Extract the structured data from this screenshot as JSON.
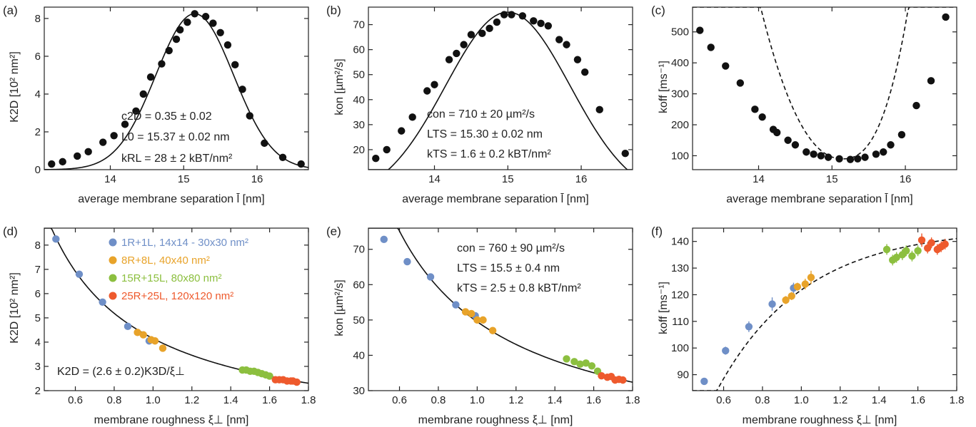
{
  "colors": {
    "axis": "#222222",
    "point_black": "#111111",
    "series_1R": "#6f8fc7",
    "series_8R": "#e8a32a",
    "series_15R": "#8cbf3f",
    "series_25R": "#ee5a2d"
  },
  "chart_data": [
    {
      "panel": "(a)",
      "type": "scatter",
      "xlabel": "average membrane separation l̄ [nm]",
      "ylabel": "K2D [10² nm²]",
      "xlim": [
        13.1,
        16.7
      ],
      "ylim": [
        0,
        8.6
      ],
      "xticks": [
        14,
        15,
        16
      ],
      "yticks": [
        0,
        2,
        4,
        6,
        8
      ],
      "fit": "solid",
      "points": [
        [
          13.2,
          0.3
        ],
        [
          13.35,
          0.42
        ],
        [
          13.55,
          0.72
        ],
        [
          13.7,
          0.95
        ],
        [
          13.9,
          1.45
        ],
        [
          14.05,
          1.8
        ],
        [
          14.2,
          2.4
        ],
        [
          14.35,
          3.1
        ],
        [
          14.45,
          4.0
        ],
        [
          14.55,
          4.9
        ],
        [
          14.7,
          5.6
        ],
        [
          14.8,
          6.3
        ],
        [
          14.9,
          6.9
        ],
        [
          14.95,
          7.4
        ],
        [
          15.05,
          7.8
        ],
        [
          15.15,
          8.25
        ],
        [
          15.3,
          8.1
        ],
        [
          15.4,
          7.75
        ],
        [
          15.5,
          7.25
        ],
        [
          15.6,
          6.6
        ],
        [
          15.7,
          5.55
        ],
        [
          15.8,
          4.25
        ],
        [
          15.9,
          2.85
        ],
        [
          16.1,
          1.4
        ],
        [
          16.35,
          0.65
        ],
        [
          16.6,
          0.3
        ]
      ],
      "annotations": [
        {
          "text": "c2D = 0.35 ± 0.02"
        },
        {
          "text": "L0 = 15.37 ± 0.02 nm"
        },
        {
          "text": "kRL = 28 ± 2 kBT/nm²"
        }
      ]
    },
    {
      "panel": "(b)",
      "type": "scatter",
      "xlabel": "average membrane separation l̄ [nm]",
      "ylabel": "kon [µm²/s]",
      "xlim": [
        13.1,
        16.7
      ],
      "ylim": [
        12,
        77
      ],
      "xticks": [
        14,
        15,
        16
      ],
      "yticks": [
        20,
        30,
        40,
        50,
        60,
        70
      ],
      "fit": "solid",
      "points": [
        [
          13.2,
          16.5
        ],
        [
          13.35,
          20
        ],
        [
          13.55,
          27.5
        ],
        [
          13.7,
          33
        ],
        [
          13.9,
          43.5
        ],
        [
          14.0,
          46
        ],
        [
          14.2,
          56
        ],
        [
          14.3,
          58.5
        ],
        [
          14.4,
          62
        ],
        [
          14.5,
          66
        ],
        [
          14.65,
          66.5
        ],
        [
          14.75,
          68.5
        ],
        [
          14.85,
          71
        ],
        [
          14.95,
          74
        ],
        [
          15.05,
          74
        ],
        [
          15.2,
          73.5
        ],
        [
          15.35,
          71.5
        ],
        [
          15.45,
          70.5
        ],
        [
          15.55,
          69.5
        ],
        [
          15.7,
          64
        ],
        [
          15.8,
          62
        ],
        [
          15.95,
          56
        ],
        [
          16.05,
          51
        ],
        [
          16.25,
          36
        ],
        [
          16.6,
          18.5
        ]
      ],
      "annotations": [
        {
          "text": "con = 710 ± 20 µm²/s"
        },
        {
          "text": "LTS = 15.30 ± 0.02 nm"
        },
        {
          "text": "kTS = 1.6 ± 0.2 kBT/nm²"
        }
      ]
    },
    {
      "panel": "(c)",
      "type": "scatter",
      "xlabel": "average membrane separation l̄ [nm]",
      "ylabel": "koff [ms⁻¹]",
      "xlim": [
        13.1,
        16.7
      ],
      "ylim": [
        55,
        580
      ],
      "xticks": [
        14,
        15,
        16
      ],
      "yticks": [
        100,
        200,
        300,
        400,
        500
      ],
      "fit": "dashed",
      "points": [
        [
          13.2,
          505
        ],
        [
          13.35,
          450
        ],
        [
          13.55,
          390
        ],
        [
          13.75,
          335
        ],
        [
          13.95,
          250
        ],
        [
          14.05,
          225
        ],
        [
          14.2,
          185
        ],
        [
          14.25,
          175
        ],
        [
          14.4,
          150
        ],
        [
          14.5,
          135
        ],
        [
          14.65,
          112
        ],
        [
          14.75,
          105
        ],
        [
          14.85,
          100
        ],
        [
          14.95,
          95
        ],
        [
          15.1,
          90
        ],
        [
          15.25,
          88
        ],
        [
          15.35,
          90
        ],
        [
          15.45,
          95
        ],
        [
          15.6,
          105
        ],
        [
          15.7,
          112
        ],
        [
          15.8,
          135
        ],
        [
          15.95,
          168
        ],
        [
          16.15,
          262
        ],
        [
          16.35,
          342
        ],
        [
          16.55,
          548
        ]
      ],
      "annotations": []
    },
    {
      "panel": "(d)",
      "type": "scatter",
      "xlabel": "membrane roughness ξ⊥ [nm]",
      "ylabel": "K2D [10² nm²]",
      "xlim": [
        0.44,
        1.8
      ],
      "ylim": [
        2.0,
        8.7
      ],
      "xticks": [
        0.6,
        0.8,
        1.0,
        1.2,
        1.4,
        1.6,
        1.8
      ],
      "yticks": [
        2,
        3,
        4,
        5,
        6,
        7,
        8
      ],
      "fit": "solid",
      "legend_position": "top-right",
      "legend": [
        {
          "label": "1R+1L, 14x14 - 30x30 nm²",
          "color_key": "series_1R"
        },
        {
          "label": "8R+8L, 40x40 nm²",
          "color_key": "series_8R"
        },
        {
          "label": "15R+15L, 80x80 nm²",
          "color_key": "series_15R"
        },
        {
          "label": "25R+25L, 120x120 nm²",
          "color_key": "series_25R"
        }
      ],
      "series": [
        {
          "color_key": "series_1R",
          "points": [
            [
              0.5,
              8.25
            ],
            [
              0.62,
              6.8
            ],
            [
              0.74,
              5.65
            ],
            [
              0.87,
              4.65
            ],
            [
              0.98,
              4.05
            ]
          ]
        },
        {
          "color_key": "series_8R",
          "points": [
            [
              0.92,
              4.4
            ],
            [
              0.95,
              4.3
            ],
            [
              0.99,
              4.1
            ],
            [
              1.01,
              4.05
            ],
            [
              1.05,
              3.75
            ]
          ]
        },
        {
          "color_key": "series_15R",
          "points": [
            [
              1.46,
              2.85
            ],
            [
              1.48,
              2.85
            ],
            [
              1.5,
              2.8
            ],
            [
              1.52,
              2.8
            ],
            [
              1.54,
              2.75
            ],
            [
              1.56,
              2.7
            ],
            [
              1.58,
              2.65
            ],
            [
              1.6,
              2.6
            ]
          ]
        },
        {
          "color_key": "series_25R",
          "points": [
            [
              1.63,
              2.45
            ],
            [
              1.65,
              2.45
            ],
            [
              1.67,
              2.45
            ],
            [
              1.69,
              2.4
            ],
            [
              1.71,
              2.4
            ],
            [
              1.72,
              2.4
            ],
            [
              1.74,
              2.35
            ]
          ]
        }
      ],
      "annotations": [
        {
          "text": "K2D = (2.6 ± 0.2)K3D/ξ⊥"
        }
      ]
    },
    {
      "panel": "(e)",
      "type": "scatter",
      "xlabel": "membrane roughness ξ⊥ [nm]",
      "ylabel": "kon [µm²/s]",
      "xlim": [
        0.44,
        1.8
      ],
      "ylim": [
        30,
        76
      ],
      "xticks": [
        0.6,
        0.8,
        1.0,
        1.2,
        1.4,
        1.6,
        1.8
      ],
      "yticks": [
        30,
        40,
        50,
        60,
        70
      ],
      "fit": "solid",
      "series": [
        {
          "color_key": "series_1R",
          "points": [
            [
              0.52,
              72.8
            ],
            [
              0.64,
              66.5
            ],
            [
              0.76,
              62.2
            ],
            [
              0.89,
              54.3
            ],
            [
              0.99,
              51.2
            ]
          ]
        },
        {
          "color_key": "series_8R",
          "points": [
            [
              0.94,
              52.3
            ],
            [
              0.97,
              51.8
            ],
            [
              1.0,
              50.0
            ],
            [
              1.03,
              50.0
            ],
            [
              1.08,
              47.0
            ]
          ]
        },
        {
          "color_key": "series_15R",
          "points": [
            [
              1.46,
              39.0
            ],
            [
              1.5,
              38.2
            ],
            [
              1.53,
              37.5
            ],
            [
              1.56,
              37.8
            ],
            [
              1.59,
              37.0
            ],
            [
              1.62,
              35.5
            ]
          ]
        },
        {
          "color_key": "series_25R",
          "points": [
            [
              1.64,
              34.2
            ],
            [
              1.67,
              33.8
            ],
            [
              1.69,
              34.0
            ],
            [
              1.71,
              33.0
            ],
            [
              1.73,
              33.2
            ],
            [
              1.75,
              33.0
            ]
          ]
        }
      ],
      "annotations": [
        {
          "text": "con = 760 ± 90 µm²/s"
        },
        {
          "text": "LTS = 15.5 ± 0.4 nm"
        },
        {
          "text": "kTS = 2.5 ± 0.8 kBT/nm²"
        }
      ]
    },
    {
      "panel": "(f)",
      "type": "scatter",
      "xlabel": "membrane roughness ξ⊥ [nm]",
      "ylabel": "koff [ms⁻¹]",
      "xlim": [
        0.44,
        1.8
      ],
      "ylim": [
        84,
        145
      ],
      "xticks": [
        0.6,
        0.8,
        1.0,
        1.2,
        1.4,
        1.6,
        1.8
      ],
      "yticks": [
        90,
        100,
        110,
        120,
        130,
        140
      ],
      "fit": "dashed",
      "series": [
        {
          "color_key": "series_1R",
          "points": [
            [
              0.5,
              87.5,
              0.8
            ],
            [
              0.61,
              99.0,
              1.5
            ],
            [
              0.73,
              108.0,
              2.0
            ],
            [
              0.85,
              116.5,
              2.5
            ],
            [
              0.96,
              122.5,
              2.0
            ]
          ]
        },
        {
          "color_key": "series_8R",
          "points": [
            [
              0.92,
              118.0,
              1.5
            ],
            [
              0.95,
              119.5,
              1.5
            ],
            [
              0.98,
              123.0,
              1.5
            ],
            [
              1.02,
              124.0,
              2.0
            ],
            [
              1.05,
              126.5,
              2.5
            ]
          ]
        },
        {
          "color_key": "series_15R",
          "points": [
            [
              1.44,
              137.0,
              2.0
            ],
            [
              1.47,
              133.0,
              2.0
            ],
            [
              1.49,
              134.0,
              2.0
            ],
            [
              1.52,
              135.0,
              2.0
            ],
            [
              1.54,
              136.5,
              2.0
            ],
            [
              1.57,
              134.5,
              2.0
            ],
            [
              1.6,
              136.5,
              2.0
            ]
          ]
        },
        {
          "color_key": "series_25R",
          "points": [
            [
              1.62,
              140.5,
              2.5
            ],
            [
              1.65,
              137.5,
              2.0
            ],
            [
              1.67,
              139.5,
              2.0
            ],
            [
              1.7,
              137.0,
              2.0
            ],
            [
              1.72,
              138.0,
              2.0
            ],
            [
              1.74,
              139.0,
              2.0
            ]
          ]
        }
      ],
      "annotations": []
    }
  ]
}
